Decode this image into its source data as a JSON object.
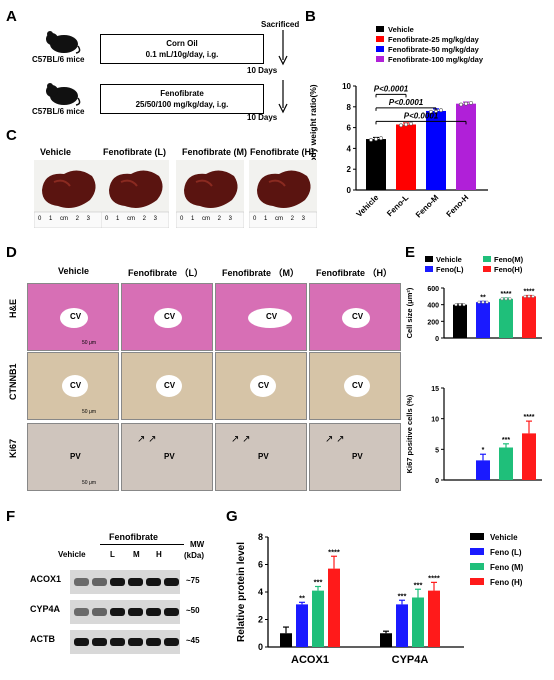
{
  "panelA": {
    "label": "A",
    "sacrificed": "Sacrificed",
    "row1": {
      "mouse": "C57BL/6 mice",
      "box_title": "Corn Oil",
      "box_sub": "0.1 mL/10g/day, i.g.",
      "days": "10 Days"
    },
    "row2": {
      "mouse": "C57BL/6 mice",
      "box_title": "Fenofibrate",
      "box_sub": "25/50/100 mg/kg/day, i.g.",
      "days": "10 Days"
    }
  },
  "panelB": {
    "label": "B",
    "legend": [
      "Vehicle",
      "Fenofibrate-25 mg/kg/day",
      "Fenofibrate-50 mg/kg/day",
      "Fenofibrate-100 mg/kg/day"
    ],
    "sig": [
      "P<0.0001",
      "P<0.0001",
      "P<0.0001"
    ]
  },
  "panelC": {
    "label": "C",
    "headers": [
      "Vehicle",
      "Fenofibrate (L)",
      "Fenofibrate (M)",
      "Fenofibrate (H)"
    ],
    "ruler": [
      "0",
      "1",
      "cm",
      "2",
      "3"
    ]
  },
  "panelD": {
    "label": "D",
    "headers": [
      "Vehicle",
      "Fenofibrate （L）",
      "Fenofibrate （M）",
      "Fenofibrate （H）"
    ],
    "rows": [
      "H&E",
      "CTNNB1",
      "Ki67"
    ],
    "cv": "CV",
    "pv": "PV",
    "scale": "50 μm"
  },
  "panelE": {
    "label": "E",
    "legend": [
      "Vehicle",
      "Feno(M)",
      "Feno(L)",
      "Feno(H)"
    ]
  },
  "panelF": {
    "label": "F",
    "group": "Fenofibrate",
    "mw_header": "MW",
    "mw_unit": "(kDa)",
    "lanes": [
      "Vehicle",
      "L",
      "M",
      "H"
    ],
    "proteins": [
      "ACOX1",
      "CYP4A",
      "ACTB"
    ],
    "mw": [
      "~75",
      "~50",
      "~45"
    ]
  },
  "panelG": {
    "label": "G",
    "legend": [
      "Vehicle",
      "Feno (L)",
      "Feno (M)",
      "Feno (H)"
    ]
  },
  "colors": {
    "vehicle": "#000000",
    "low": "#1a1aff",
    "mid": "#1fbf7a",
    "high": "#ff1a1a",
    "blue": "#0000ff",
    "purple": "#b020d8",
    "red": "#ff0000"
  },
  "chart_data": [
    {
      "type": "bar",
      "panel": "B",
      "categories": [
        "Vehicle",
        "Feno-L",
        "Feno-M",
        "Feno-H"
      ],
      "values": [
        4.9,
        6.3,
        7.6,
        8.3
      ],
      "errors": [
        0.15,
        0.15,
        0.2,
        0.15
      ],
      "colors": [
        "#000000",
        "#ff0000",
        "#0000ff",
        "#b020d8"
      ],
      "ylabel": "Liver/Body weight ratio(%)",
      "ylim": [
        0,
        10
      ],
      "yticks": [
        0,
        2,
        4,
        6,
        8,
        10
      ]
    },
    {
      "type": "bar",
      "panel": "E-top",
      "categories": [
        "Vehicle",
        "Feno(L)",
        "Feno(M)",
        "Feno(H)"
      ],
      "values": [
        400,
        430,
        470,
        500
      ],
      "errors": [
        8,
        10,
        10,
        10
      ],
      "sig": [
        "",
        "**",
        "****",
        "****"
      ],
      "colors": [
        "#000000",
        "#1a1aff",
        "#1fbf7a",
        "#ff1a1a"
      ],
      "ylabel": "Cell size (μm²)",
      "ylim": [
        0,
        600
      ],
      "yticks": [
        0,
        200,
        400,
        600
      ]
    },
    {
      "type": "bar",
      "panel": "E-bottom",
      "categories": [
        "Vehicle",
        "Feno(L)",
        "Feno(M)",
        "Feno(H)"
      ],
      "values": [
        0,
        3.2,
        5.3,
        7.6
      ],
      "errors": [
        0,
        1.0,
        0.6,
        2.0
      ],
      "sig": [
        "",
        "*",
        "***",
        "****"
      ],
      "colors": [
        "#000000",
        "#1a1aff",
        "#1fbf7a",
        "#ff1a1a"
      ],
      "ylabel": "Ki67 positive cells (%)",
      "ylim": [
        0,
        15
      ],
      "yticks": [
        0,
        5,
        10,
        15
      ]
    },
    {
      "type": "bar",
      "panel": "G",
      "categories": [
        "ACOX1",
        "CYP4A"
      ],
      "series": [
        {
          "name": "Vehicle",
          "values": [
            1.0,
            1.0
          ],
          "errors": [
            0.45,
            0.15
          ],
          "sig": [
            "",
            ""
          ]
        },
        {
          "name": "Feno (L)",
          "values": [
            3.1,
            3.1
          ],
          "errors": [
            0.15,
            0.3
          ],
          "sig": [
            "**",
            "***"
          ]
        },
        {
          "name": "Feno (M)",
          "values": [
            4.1,
            3.6
          ],
          "errors": [
            0.3,
            0.6
          ],
          "sig": [
            "***",
            "***"
          ]
        },
        {
          "name": "Feno (H)",
          "values": [
            5.7,
            4.1
          ],
          "errors": [
            0.9,
            0.6
          ],
          "sig": [
            "****",
            "****"
          ]
        }
      ],
      "colors": [
        "#000000",
        "#1a1aff",
        "#1fbf7a",
        "#ff1a1a"
      ],
      "ylabel": "Relative protein level",
      "ylim": [
        0,
        8
      ],
      "yticks": [
        0,
        2,
        4,
        6,
        8
      ]
    }
  ]
}
